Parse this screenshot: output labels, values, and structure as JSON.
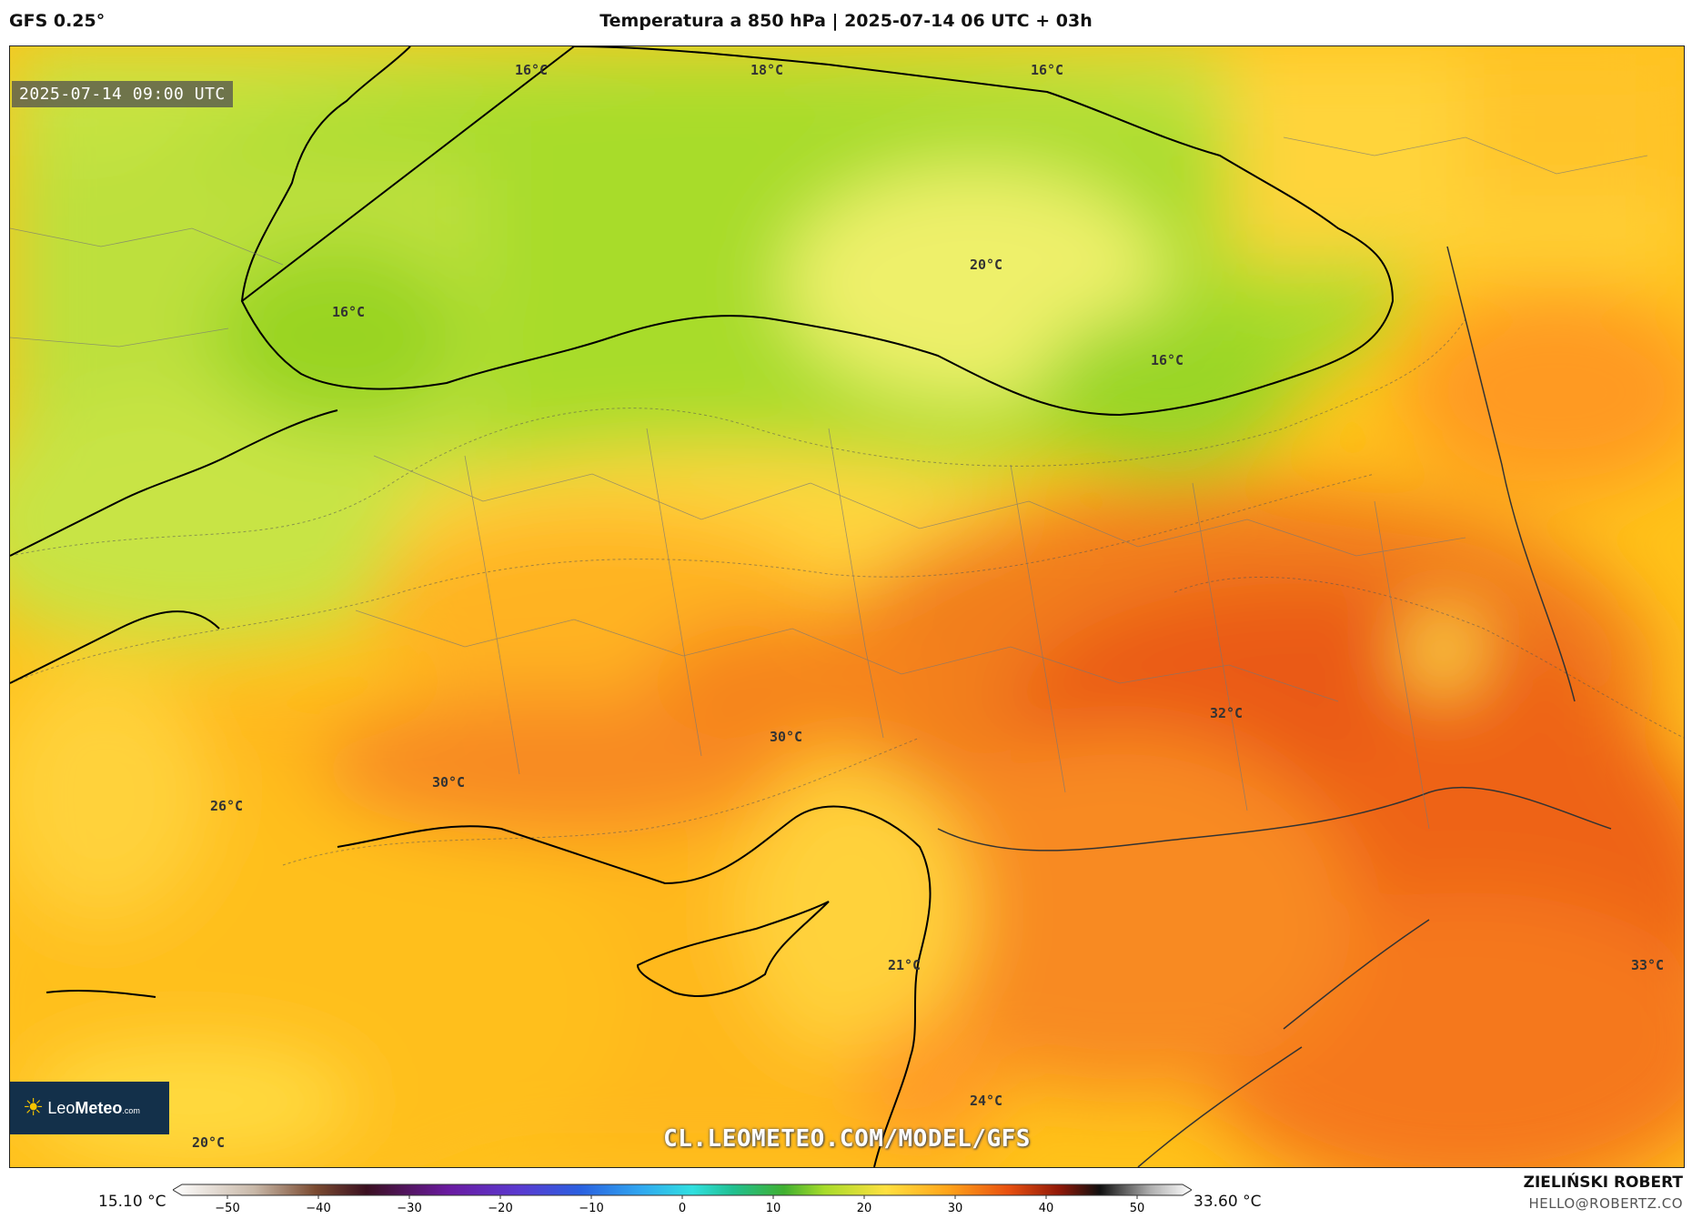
{
  "header": {
    "model": "GFS 0.25°",
    "title": "Temperatura a 850 hPa | 2025-07-14 06 UTC + 03h"
  },
  "map": {
    "timestamp": "2025-07-14 09:00 UTC",
    "temperature_labels": [
      "16°C",
      "18°C",
      "16°C",
      "16°C",
      "20°C",
      "16°C",
      "32°C",
      "30°C",
      "30°C",
      "26°C",
      "33°C",
      "21°C",
      "24°C",
      "20°C"
    ],
    "watermark": "CL.LEOMETEO.COM/MODEL/GFS",
    "logo": {
      "name": "LeoMeteo",
      "name_plain": "Leo",
      "name_bold": "Meteo",
      "suffix": ".com"
    }
  },
  "colorbar": {
    "min_value": "15.10 °C",
    "max_value": "33.60 °C",
    "ticks": [
      "−50",
      "−40",
      "−30",
      "−20",
      "−10",
      "0",
      "10",
      "20",
      "30",
      "40",
      "50"
    ],
    "range": [
      -55,
      55
    ]
  },
  "credits": {
    "author": "ZIELIŃSKI ROBERT",
    "email": "HELLO@ROBERTZ.CO"
  },
  "colors": {
    "sea_cool": "#a6dc2a",
    "land_green": "#c2e04a",
    "yellow": "#ffd93a",
    "orange": "#ffa51a",
    "hot": "#f0621e",
    "hottest": "#e04a10"
  }
}
